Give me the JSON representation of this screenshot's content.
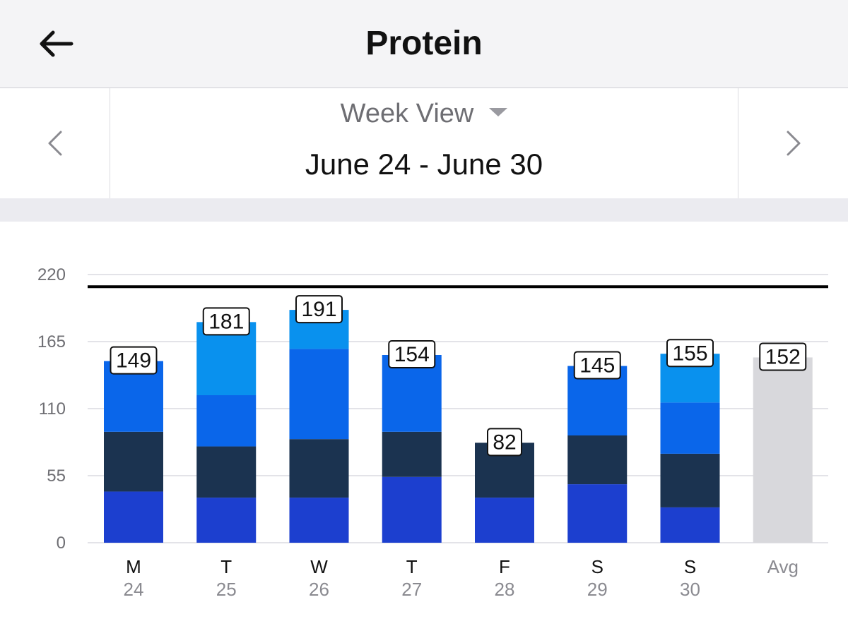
{
  "header": {
    "title": "Protein",
    "back_icon": "arrow-left-icon"
  },
  "date_nav": {
    "view_label": "Week View",
    "range": "June 24 - June 30",
    "prev_icon": "chevron-left-icon",
    "next_icon": "chevron-right-icon"
  },
  "colors": {
    "segment_bottom": "#1c3fcf",
    "segment_dark": "#1b3350",
    "segment_mid": "#0a66ea",
    "segment_top": "#0991ee",
    "avg_bar": "#d8d8dc",
    "goal_line": "#000000",
    "grid": "#e3e3e8"
  },
  "chart_data": {
    "type": "bar",
    "stacked": true,
    "categories": [
      {
        "day": "M",
        "date": "24"
      },
      {
        "day": "T",
        "date": "25"
      },
      {
        "day": "W",
        "date": "26"
      },
      {
        "day": "T",
        "date": "27"
      },
      {
        "day": "F",
        "date": "28"
      },
      {
        "day": "S",
        "date": "29"
      },
      {
        "day": "S",
        "date": "30"
      },
      {
        "day": "Avg",
        "date": ""
      }
    ],
    "series": [
      {
        "values": [
          42,
          37,
          37,
          54,
          37,
          48,
          29,
          0
        ],
        "color": "#1c3fcf"
      },
      {
        "values": [
          49,
          42,
          48,
          37,
          45,
          40,
          44,
          0
        ],
        "color": "#1b3350"
      },
      {
        "values": [
          58,
          42,
          74,
          63,
          0,
          57,
          42,
          0
        ],
        "color": "#0a66ea"
      },
      {
        "values": [
          0,
          60,
          32,
          0,
          0,
          0,
          40,
          0
        ],
        "color": "#0991ee"
      },
      {
        "values": [
          0,
          0,
          0,
          0,
          0,
          0,
          0,
          152
        ],
        "color": "#d8d8dc"
      }
    ],
    "totals": [
      "149",
      "181",
      "191",
      "154",
      "82",
      "145",
      "155",
      "152"
    ],
    "goal": 210,
    "yticks": [
      0,
      55,
      110,
      165,
      220
    ],
    "ylim": [
      0,
      220
    ],
    "grid": true,
    "legend": "none"
  }
}
